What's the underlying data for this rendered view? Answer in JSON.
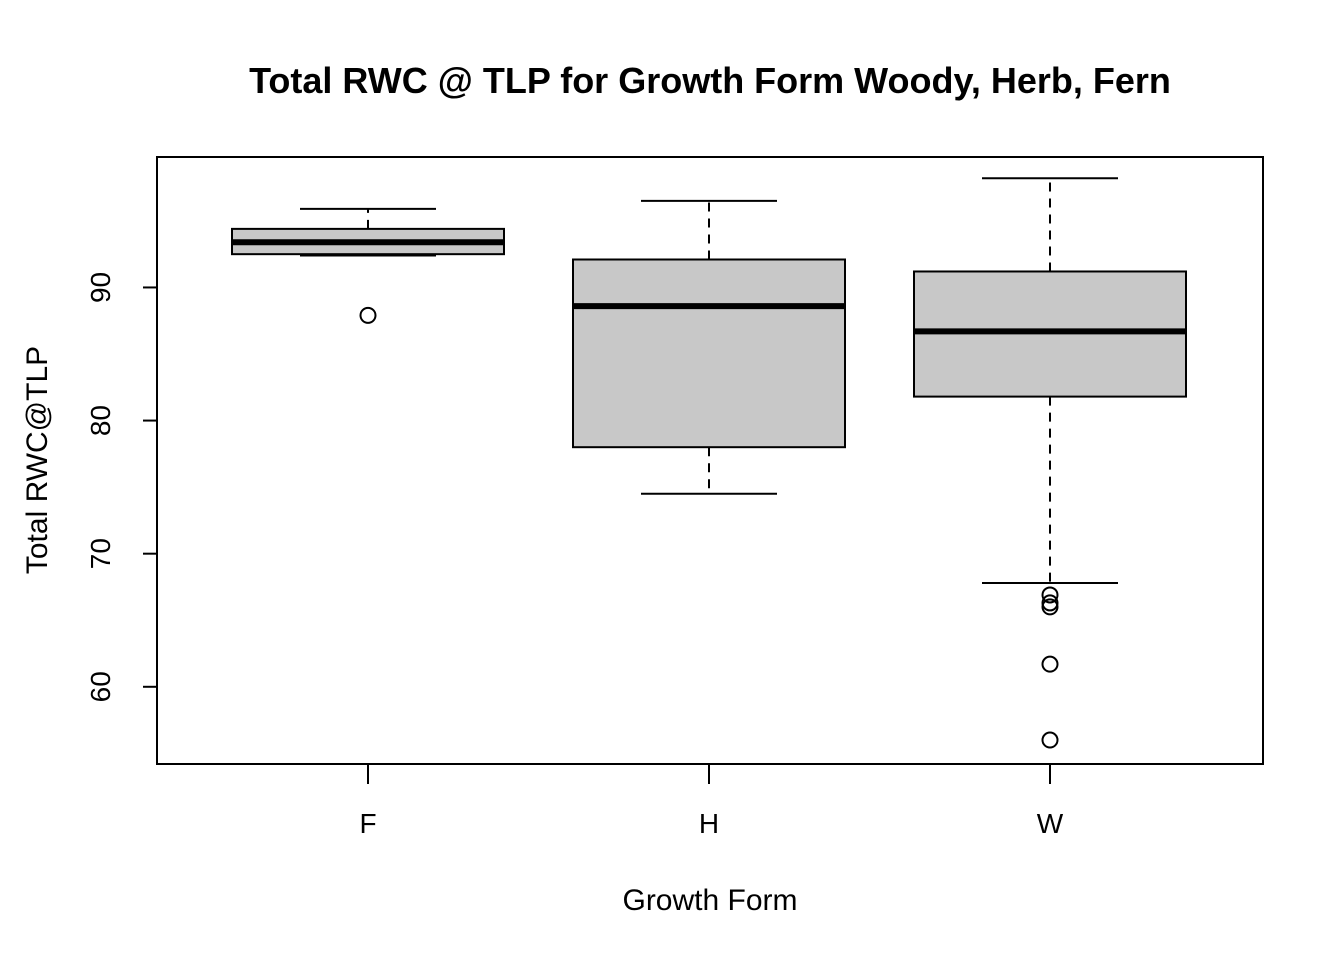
{
  "chart_data": {
    "type": "boxplot",
    "title": "Total RWC @ TLP for Growth Form Woody, Herb, Fern",
    "xlabel": "Growth Form",
    "ylabel": "Total RWC@TLP",
    "ylim": [
      54.2,
      99.8
    ],
    "yticks": [
      60,
      70,
      80,
      90
    ],
    "grid": false,
    "box_fill": "#c8c8c8",
    "categories": [
      "F",
      "H",
      "W"
    ],
    "boxes": [
      {
        "category": "F",
        "whisker_low": 92.4,
        "q1": 92.5,
        "median": 93.4,
        "q3": 94.4,
        "whisker_high": 95.9,
        "outliers": [
          87.9
        ]
      },
      {
        "category": "H",
        "whisker_low": 74.5,
        "q1": 78.0,
        "median": 88.6,
        "q3": 92.1,
        "whisker_high": 96.5,
        "outliers": []
      },
      {
        "category": "W",
        "whisker_low": 67.8,
        "q1": 81.8,
        "median": 86.7,
        "q3": 91.2,
        "whisker_high": 98.2,
        "outliers": [
          66.9,
          66.3,
          66.0,
          61.7,
          56.0
        ]
      }
    ]
  }
}
